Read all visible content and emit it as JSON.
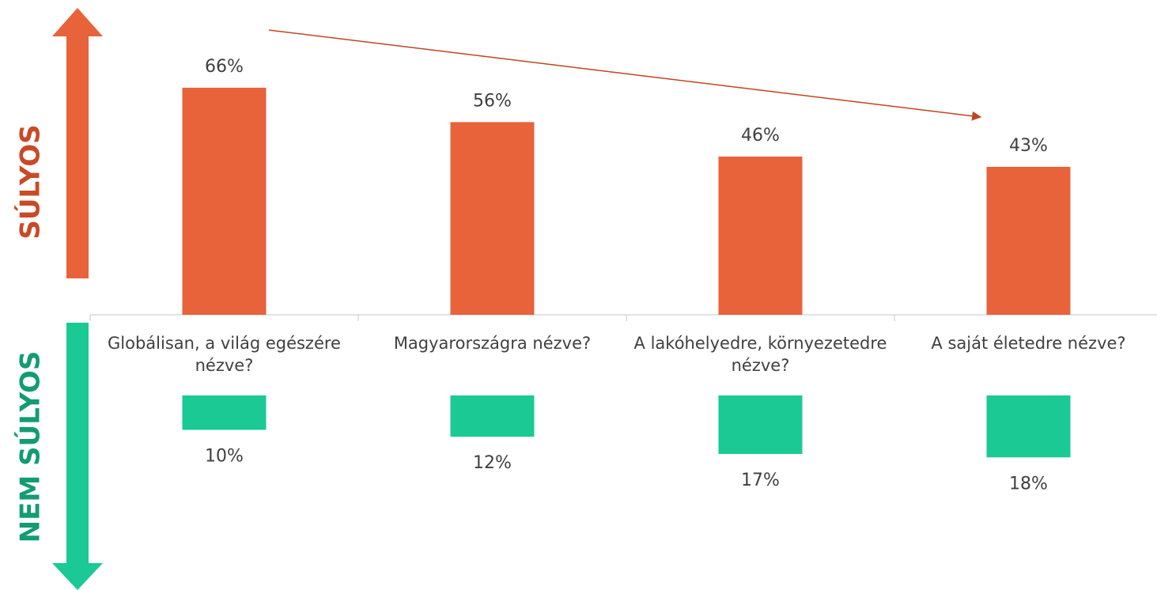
{
  "chart_data": {
    "type": "diverging-bar",
    "categories": [
      "Globálisan, a világ egészére nézve?",
      "Magyarországra nézve?",
      "A lakóhelyedre, környezetedre nézve?",
      "A saját életedre nézve?"
    ],
    "series": [
      {
        "name": "SÚLYOS",
        "color": "#e8623a",
        "values": [
          66,
          56,
          46,
          43
        ],
        "value_labels": [
          "66%",
          "56%",
          "46%",
          "43%"
        ]
      },
      {
        "name": "NEM SÚLYOS",
        "color": "#1bc995",
        "values": [
          10,
          12,
          17,
          18
        ],
        "value_labels": [
          "10%",
          "12%",
          "17%",
          "18%"
        ]
      }
    ]
  }
}
